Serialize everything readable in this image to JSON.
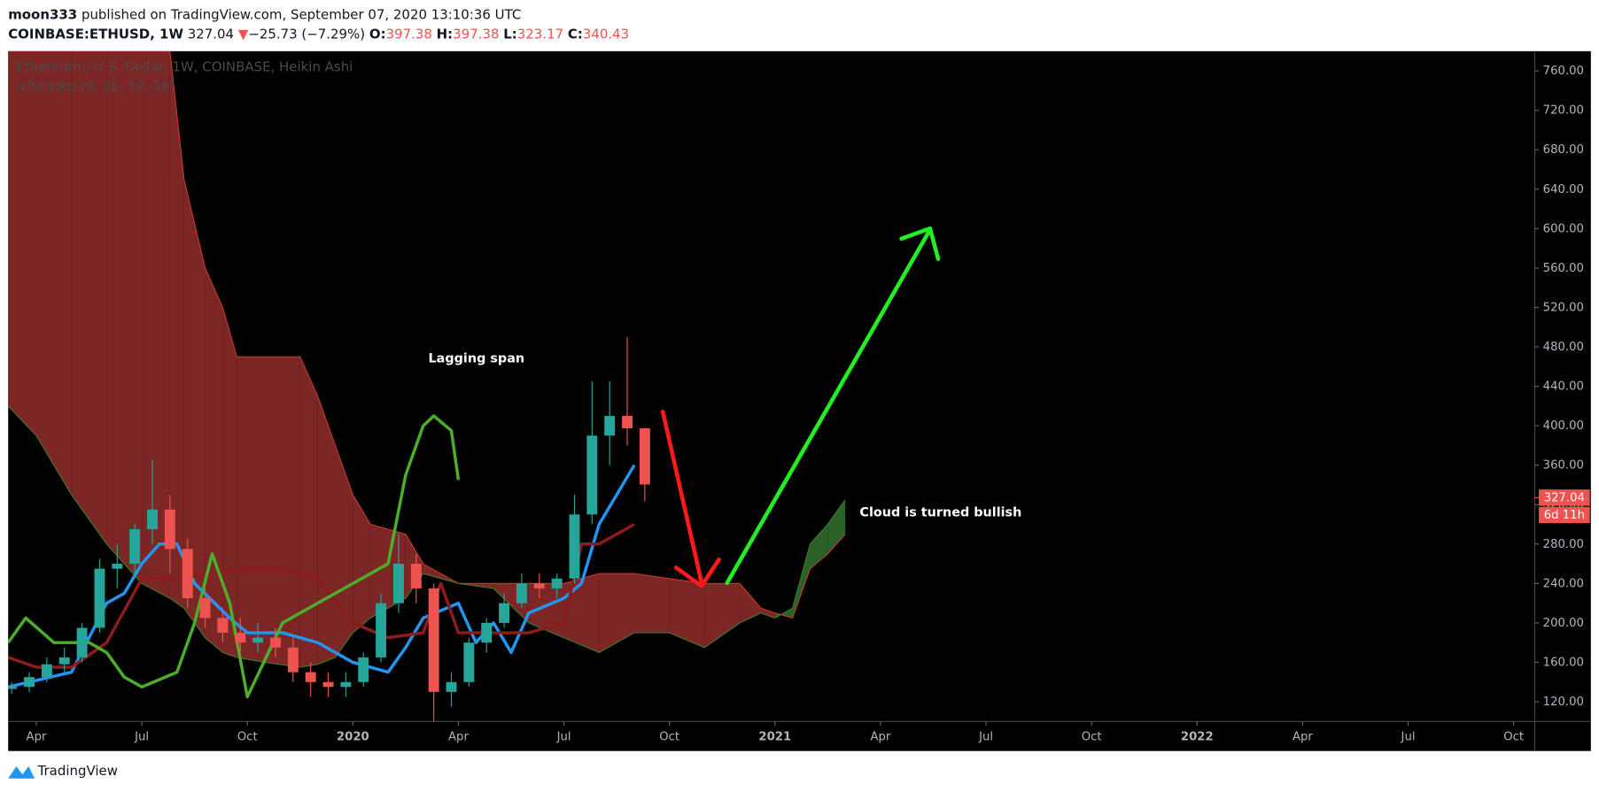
{
  "header": {
    "author": "moon333",
    "published": " published on TradingView.com, September 07, 2020 13:10:36 UTC",
    "symbol": "COINBASE:ETHUSD, 1W",
    "price": 327.04,
    "arrow": "▼",
    "change": "−25.73 (−7.29%)",
    "ohlc": [
      {
        "label": "O:",
        "value": "397.38"
      },
      {
        "label": "H:",
        "value": "397.38"
      },
      {
        "label": "L:",
        "value": "323.17"
      },
      {
        "label": "C:",
        "value": "340.43"
      }
    ]
  },
  "footer": {
    "brand": "TradingView"
  },
  "chart_data": {
    "type": "candlestick",
    "legend": [
      "Ethereum / U.S. Dollar, 1W, COINBASE, Heikin Ashi",
      "Ichimoku (9, 26, 52, 26)"
    ],
    "annotations": [
      "Lagging span",
      "Cloud is turned bullish"
    ],
    "last_price": {
      "value": 327.04,
      "label": "327.04",
      "countdown": "6d 11h",
      "color": "#ef5350"
    },
    "xlim": [
      2.2,
      45.6
    ],
    "ylim": [
      100,
      780
    ],
    "xticks": [
      {
        "value": 3,
        "label": "Apr"
      },
      {
        "value": 6,
        "label": "Jul"
      },
      {
        "value": 9,
        "label": "Oct"
      },
      {
        "value": 12,
        "label": "2020"
      },
      {
        "value": 15,
        "label": "Apr"
      },
      {
        "value": 18,
        "label": "Jul"
      },
      {
        "value": 21,
        "label": "Oct"
      },
      {
        "value": 24,
        "label": "2021"
      },
      {
        "value": 27,
        "label": "Apr"
      },
      {
        "value": 30,
        "label": "Jul"
      },
      {
        "value": 33,
        "label": "Oct"
      },
      {
        "value": 36,
        "label": "2022"
      },
      {
        "value": 39,
        "label": "Apr"
      },
      {
        "value": 42,
        "label": "Jul"
      },
      {
        "value": 45,
        "label": "Oct"
      }
    ],
    "yticks": [
      {
        "value": 120,
        "label": "120.00"
      },
      {
        "value": 160,
        "label": "160.00"
      },
      {
        "value": 200,
        "label": "200.00"
      },
      {
        "value": 240,
        "label": "240.00"
      },
      {
        "value": 280,
        "label": "280.00"
      },
      {
        "value": 320,
        "label": "320.00"
      },
      {
        "value": 360,
        "label": "360.00"
      },
      {
        "value": 400,
        "label": "400.00"
      },
      {
        "value": 440,
        "label": "440.00"
      },
      {
        "value": 480,
        "label": "480.00"
      },
      {
        "value": 520,
        "label": "520.00"
      },
      {
        "value": 560,
        "label": "560.00"
      },
      {
        "value": 600,
        "label": "600.00"
      },
      {
        "value": 640,
        "label": "640.00"
      },
      {
        "value": 680,
        "label": "680.00"
      },
      {
        "value": 720,
        "label": "720.00"
      },
      {
        "value": 760,
        "label": "760.00"
      }
    ],
    "cloud": {
      "bull_color": "#2e6b2e",
      "bear_color": "#8b2a2a",
      "line_a": "#3d7a2a",
      "line_b": "#c0392b",
      "x": [
        2.2,
        3,
        4,
        5,
        6,
        6.8,
        7.2,
        7.8,
        8.3,
        8.7,
        9.5,
        10.5,
        11,
        11.5,
        12,
        12.5,
        13.5,
        14,
        15,
        16,
        17,
        18,
        19,
        20,
        21,
        22,
        23,
        23.6,
        24,
        24.5,
        25,
        25.5,
        26
      ],
      "span_a": [
        420,
        390,
        330,
        280,
        240,
        225,
        215,
        185,
        170,
        165,
        160,
        155,
        158,
        165,
        190,
        205,
        225,
        250,
        240,
        235,
        200,
        185,
        170,
        190,
        190,
        175,
        200,
        210,
        205,
        215,
        280,
        300,
        325
      ],
      "span_b": [
        780,
        780,
        780,
        780,
        780,
        780,
        650,
        560,
        520,
        470,
        470,
        470,
        430,
        380,
        330,
        300,
        290,
        260,
        240,
        240,
        240,
        240,
        250,
        250,
        245,
        240,
        240,
        215,
        210,
        205,
        255,
        270,
        290
      ]
    },
    "candles": {
      "up_color": "#26a69a",
      "down_color": "#ef5350",
      "x": [
        2.3,
        2.8,
        3.3,
        3.8,
        4.3,
        4.8,
        5.3,
        5.8,
        6.3,
        6.8,
        7.3,
        7.8,
        8.3,
        8.8,
        9.3,
        9.8,
        10.3,
        10.8,
        11.3,
        11.8,
        12.3,
        12.8,
        13.3,
        13.8,
        14.3,
        14.8,
        15.3,
        15.8,
        16.3,
        16.8,
        17.3,
        17.8,
        18.3,
        18.8,
        19.3,
        19.8,
        20.3
      ],
      "open": [
        133,
        135,
        145,
        158,
        165,
        195,
        255,
        260,
        295,
        315,
        275,
        225,
        205,
        190,
        180,
        185,
        175,
        150,
        140,
        135,
        140,
        165,
        220,
        260,
        235,
        130,
        140,
        180,
        200,
        220,
        240,
        235,
        245,
        310,
        390,
        410,
        397.38
      ],
      "high": [
        140,
        150,
        165,
        175,
        200,
        265,
        280,
        300,
        365,
        330,
        285,
        235,
        215,
        205,
        200,
        195,
        185,
        160,
        150,
        150,
        170,
        230,
        290,
        270,
        240,
        150,
        185,
        205,
        230,
        250,
        250,
        250,
        330,
        445,
        445,
        490,
        397.38
      ],
      "low": [
        128,
        130,
        140,
        150,
        160,
        190,
        235,
        245,
        280,
        250,
        215,
        195,
        180,
        170,
        170,
        165,
        140,
        125,
        125,
        125,
        135,
        160,
        210,
        220,
        100,
        115,
        135,
        170,
        195,
        215,
        225,
        225,
        240,
        300,
        360,
        380,
        323.17
      ],
      "close": [
        135,
        145,
        158,
        165,
        195,
        255,
        260,
        295,
        315,
        275,
        225,
        205,
        190,
        180,
        185,
        175,
        150,
        140,
        135,
        140,
        165,
        220,
        260,
        235,
        130,
        140,
        180,
        200,
        220,
        240,
        235,
        245,
        310,
        390,
        410,
        397.38,
        340.43
      ]
    },
    "series": [
      {
        "color": "#2196f3",
        "x": [
          2.2,
          4,
          5,
          5.5,
          6,
          6.5,
          7,
          7.5,
          8.5,
          9,
          10,
          11,
          12,
          13,
          13.5,
          14,
          15,
          15.5,
          16,
          16.5,
          17,
          18,
          18.5,
          19,
          19.5,
          20
        ],
        "values": [
          135,
          150,
          220,
          230,
          260,
          280,
          280,
          240,
          205,
          190,
          190,
          180,
          160,
          150,
          175,
          205,
          220,
          180,
          200,
          170,
          210,
          225,
          240,
          300,
          330,
          360
        ]
      },
      {
        "color": "#8e1c1c",
        "x": [
          2.2,
          3,
          4,
          5,
          6,
          7,
          8,
          9,
          10,
          11,
          12,
          13,
          14,
          14.5,
          15,
          16,
          17,
          18,
          18.5,
          19,
          20
        ],
        "values": [
          165,
          155,
          155,
          180,
          245,
          245,
          250,
          255,
          255,
          245,
          200,
          185,
          190,
          240,
          190,
          190,
          190,
          200,
          280,
          280,
          300
        ]
      },
      {
        "color": "#4caf2a",
        "x": [
          2.2,
          2.7,
          3.5,
          4.5,
          5,
          5.5,
          6,
          7,
          7.5,
          8,
          8.5,
          9,
          10,
          10.5,
          11.5,
          12,
          13,
          13.5,
          14,
          14.3,
          14.8,
          15
        ],
        "values": [
          180,
          205,
          180,
          180,
          170,
          145,
          135,
          150,
          200,
          270,
          220,
          125,
          200,
          210,
          230,
          240,
          260,
          350,
          400,
          410,
          395,
          345
        ]
      }
    ]
  }
}
